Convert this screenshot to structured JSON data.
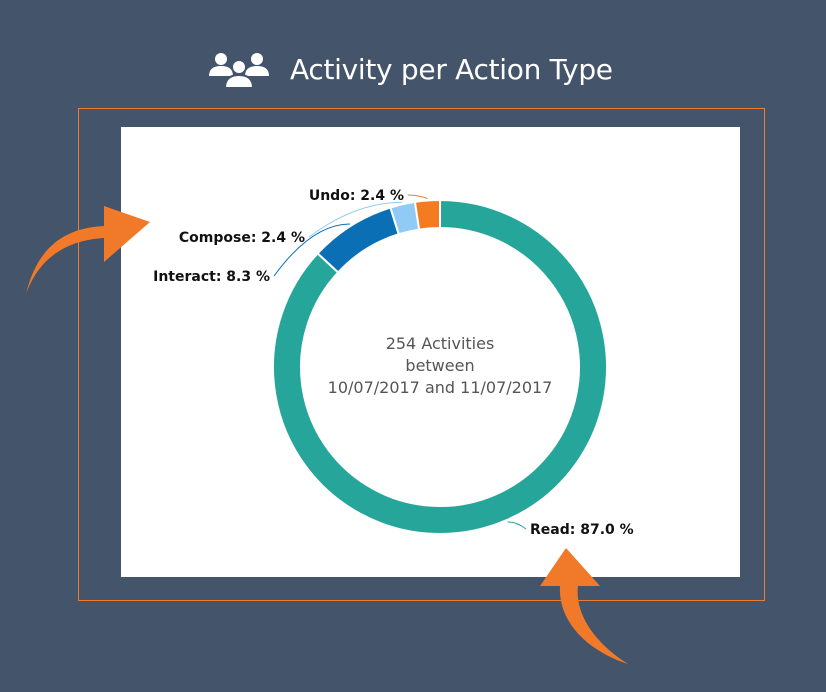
{
  "header": {
    "title": "Activity per Action Type",
    "icon": "users-group-icon"
  },
  "chart_data": {
    "type": "pie",
    "variant": "donut",
    "center_text": [
      "254 Activities",
      "between",
      "10/07/2017 and 11/07/2017"
    ],
    "slices": [
      {
        "name": "Read",
        "value": 87.0,
        "label": "Read: 87.0 %",
        "color": "#26a69a"
      },
      {
        "name": "Interact",
        "value": 8.3,
        "label": "Interact: 8.3 %",
        "color": "#0b6fb6"
      },
      {
        "name": "Compose",
        "value": 2.4,
        "label": "Compose: 2.4 %",
        "color": "#90cbf5"
      },
      {
        "name": "Undo",
        "value": 2.4,
        "label": "Undo: 2.4 %",
        "color": "#f47b20"
      }
    ],
    "unit": "%"
  },
  "colors": {
    "background": "#44546a",
    "accent": "#f07a2a",
    "panel": "#ffffff"
  }
}
